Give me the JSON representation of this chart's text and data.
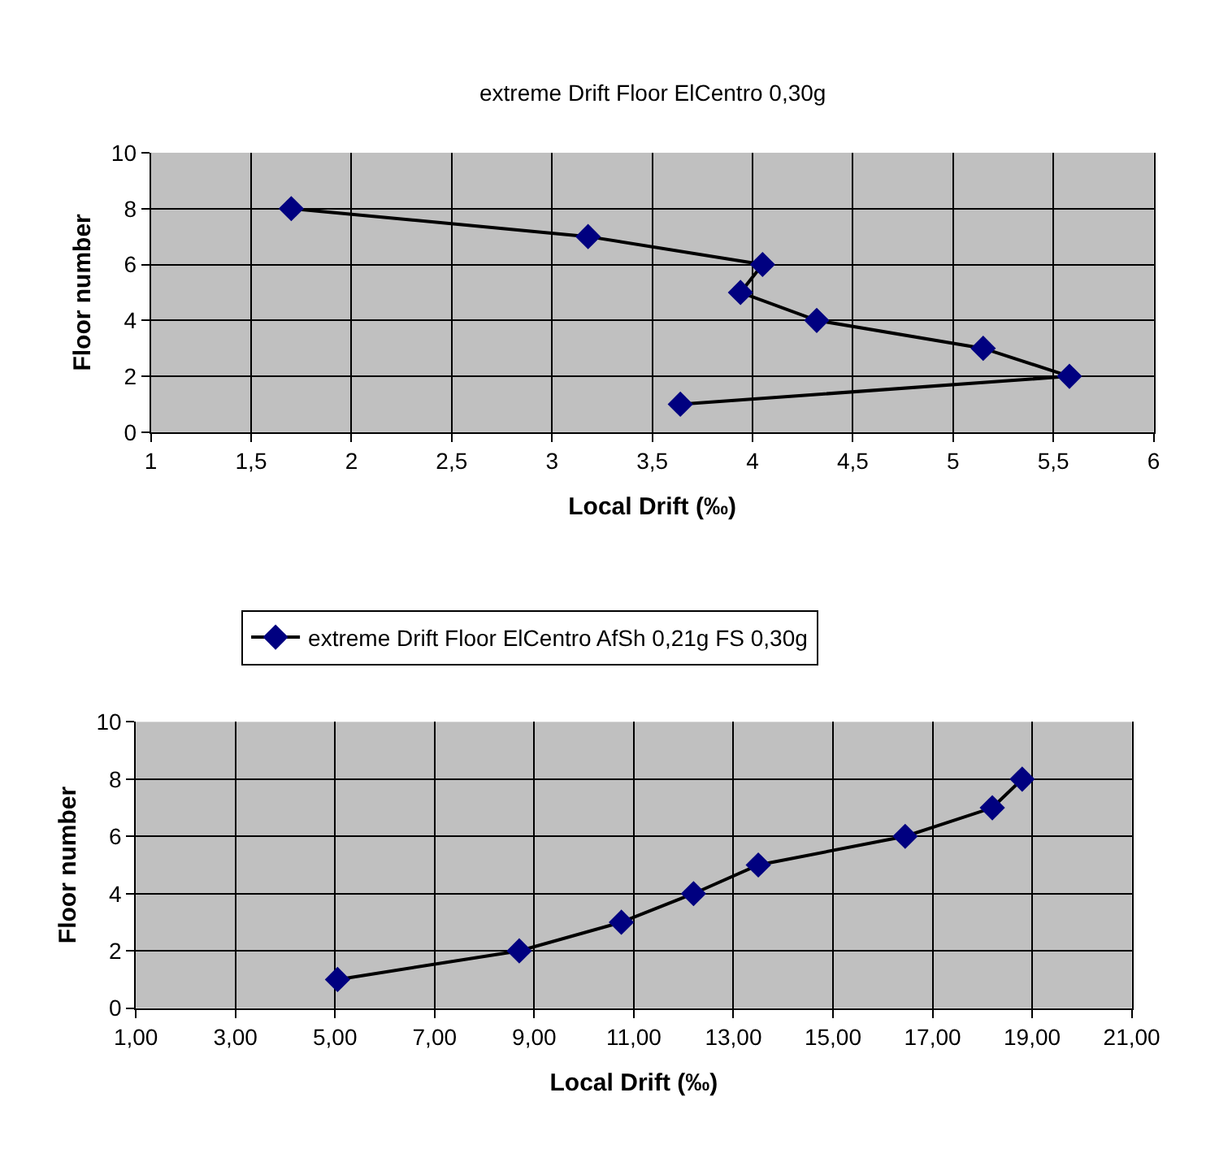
{
  "chart_data": [
    {
      "type": "line",
      "title": "extreme Drift Floor ElCentro 0,30g",
      "xlabel": "Local Drift (‰)",
      "ylabel": "Floor number",
      "marker": "diamond",
      "grid": true,
      "legend": false,
      "series": [
        {
          "color": "#000080",
          "x": [
            1.7,
            3.18,
            4.05,
            3.94,
            4.32,
            5.15,
            5.58,
            3.64
          ],
          "values": [
            8,
            7,
            6,
            5,
            4,
            3,
            2,
            1
          ]
        }
      ],
      "xlim": [
        1,
        6
      ],
      "xticks": [
        1,
        {
          "value": 1.5,
          "label": "1,5"
        },
        2,
        {
          "value": 2.5,
          "label": "2,5"
        },
        3,
        {
          "value": 3.5,
          "label": "3,5"
        },
        4,
        {
          "value": 4.5,
          "label": "4,5"
        },
        5,
        {
          "value": 5.5,
          "label": "5,5"
        },
        6
      ],
      "ylim": [
        0,
        10
      ],
      "yticks": [
        0,
        2,
        4,
        6,
        8,
        10
      ]
    },
    {
      "type": "line",
      "xlabel": "Local Drift (‰)",
      "ylabel": "Floor number",
      "marker": "diamond",
      "grid": true,
      "legend": "top",
      "series": [
        {
          "name": "extreme Drift Floor ElCentro AfSh 0,21g FS 0,30g",
          "color": "#000080",
          "x": [
            5.05,
            8.7,
            10.75,
            12.2,
            13.5,
            16.45,
            18.2,
            18.8
          ],
          "values": [
            1,
            2,
            3,
            4,
            5,
            6,
            7,
            8
          ]
        }
      ],
      "xlim": [
        1,
        21
      ],
      "xticks": [
        {
          "value": 1,
          "label": "1,00"
        },
        {
          "value": 3,
          "label": "3,00"
        },
        {
          "value": 5,
          "label": "5,00"
        },
        {
          "value": 7,
          "label": "7,00"
        },
        {
          "value": 9,
          "label": "9,00"
        },
        {
          "value": 11,
          "label": "11,00"
        },
        {
          "value": 13,
          "label": "13,00"
        },
        {
          "value": 15,
          "label": "15,00"
        },
        {
          "value": 17,
          "label": "17,00"
        },
        {
          "value": 19,
          "label": "19,00"
        },
        {
          "value": 21,
          "label": "21,00"
        }
      ],
      "ylim": [
        0,
        10
      ],
      "yticks": [
        0,
        2,
        4,
        6,
        8,
        10
      ]
    }
  ]
}
